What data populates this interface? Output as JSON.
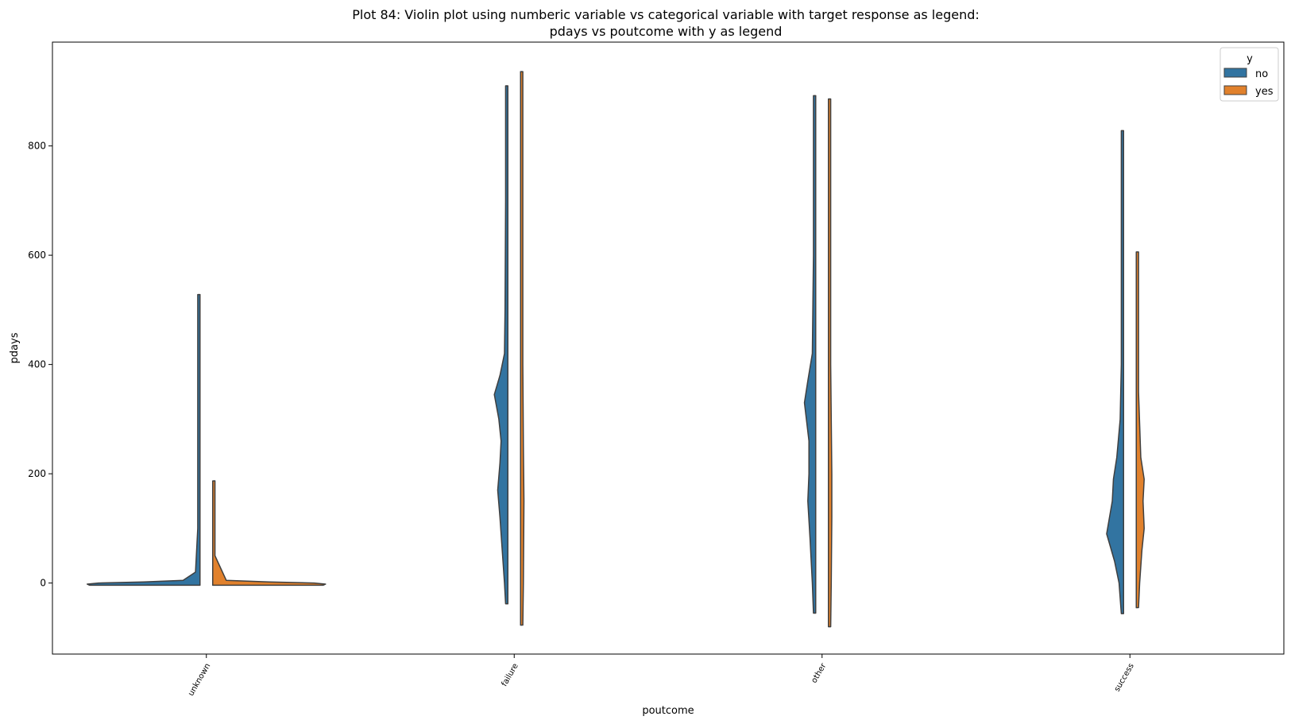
{
  "chart_data": {
    "type": "violin",
    "title_line1": "Plot 84: Violin plot using numberic variable vs categorical variable with target response as legend:",
    "title_line2": "pdays vs poutcome with y as legend",
    "xlabel": "poutcome",
    "ylabel": "pdays",
    "ylim": [
      -130,
      990
    ],
    "yticks": [
      0,
      200,
      400,
      600,
      800
    ],
    "grid": false,
    "legend_position": "top-right",
    "legend_title": "y",
    "colors": {
      "no": "#3274a1",
      "yes": "#e1812c",
      "outline": "#3f3f3f"
    },
    "categories": [
      "unknown",
      "failure",
      "other",
      "success"
    ],
    "series": [
      {
        "name": "no",
        "violins": [
          {
            "min": -4,
            "max": 528,
            "profile": [
              [
                -4,
                0.98
              ],
              [
                -2,
                1.0
              ],
              [
                0,
                0.9
              ],
              [
                2,
                0.5
              ],
              [
                5,
                0.15
              ],
              [
                20,
                0.04
              ],
              [
                100,
                0.02
              ],
              [
                300,
                0.02
              ],
              [
                528,
                0.02
              ]
            ]
          },
          {
            "min": -38,
            "max": 910,
            "profile": [
              [
                -38,
                0.02
              ],
              [
                0,
                0.03
              ],
              [
                60,
                0.05
              ],
              [
                120,
                0.07
              ],
              [
                170,
                0.09
              ],
              [
                220,
                0.07
              ],
              [
                260,
                0.06
              ],
              [
                300,
                0.08
              ],
              [
                345,
                0.12
              ],
              [
                380,
                0.07
              ],
              [
                420,
                0.03
              ],
              [
                500,
                0.025
              ],
              [
                700,
                0.02
              ],
              [
                910,
                0.02
              ]
            ]
          },
          {
            "min": -55,
            "max": 892,
            "profile": [
              [
                -55,
                0.02
              ],
              [
                0,
                0.03
              ],
              [
                80,
                0.05
              ],
              [
                150,
                0.07
              ],
              [
                200,
                0.06
              ],
              [
                260,
                0.06
              ],
              [
                330,
                0.1
              ],
              [
                370,
                0.07
              ],
              [
                420,
                0.03
              ],
              [
                600,
                0.02
              ],
              [
                892,
                0.02
              ]
            ]
          },
          {
            "min": -56,
            "max": 828,
            "profile": [
              [
                -56,
                0.02
              ],
              [
                0,
                0.04
              ],
              [
                40,
                0.08
              ],
              [
                90,
                0.15
              ],
              [
                150,
                0.1
              ],
              [
                190,
                0.09
              ],
              [
                230,
                0.06
              ],
              [
                300,
                0.03
              ],
              [
                400,
                0.02
              ],
              [
                828,
                0.02
              ]
            ]
          }
        ]
      },
      {
        "name": "yes",
        "violins": [
          {
            "min": -4,
            "max": 187,
            "profile": [
              [
                -4,
                0.98
              ],
              [
                -2,
                1.0
              ],
              [
                0,
                0.9
              ],
              [
                2,
                0.5
              ],
              [
                5,
                0.12
              ],
              [
                50,
                0.02
              ],
              [
                187,
                0.02
              ]
            ]
          },
          {
            "min": -77,
            "max": 936,
            "profile": [
              [
                -77,
                0.02
              ],
              [
                0,
                0.025
              ],
              [
                150,
                0.03
              ],
              [
                250,
                0.025
              ],
              [
                400,
                0.02
              ],
              [
                936,
                0.02
              ]
            ]
          },
          {
            "min": -80,
            "max": 886,
            "profile": [
              [
                -80,
                0.02
              ],
              [
                0,
                0.025
              ],
              [
                120,
                0.03
              ],
              [
                200,
                0.03
              ],
              [
                400,
                0.02
              ],
              [
                886,
                0.02
              ]
            ]
          },
          {
            "min": -45,
            "max": 606,
            "profile": [
              [
                -45,
                0.02
              ],
              [
                0,
                0.03
              ],
              [
                60,
                0.05
              ],
              [
                100,
                0.07
              ],
              [
                150,
                0.06
              ],
              [
                190,
                0.07
              ],
              [
                230,
                0.04
              ],
              [
                350,
                0.02
              ],
              [
                606,
                0.02
              ]
            ]
          }
        ]
      }
    ]
  }
}
